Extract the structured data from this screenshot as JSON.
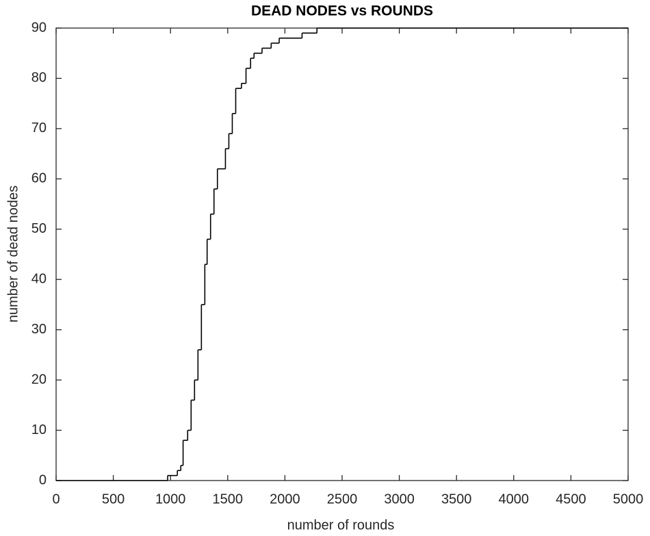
{
  "chart_data": {
    "type": "line",
    "step": "post",
    "title": "DEAD NODES vs ROUNDS",
    "x_label": "number of rounds",
    "y_label": "number of dead nodes",
    "color": "#000000",
    "x": [
      0,
      975,
      1060,
      1090,
      1110,
      1150,
      1180,
      1210,
      1240,
      1270,
      1300,
      1320,
      1350,
      1380,
      1410,
      1480,
      1510,
      1540,
      1570,
      1620,
      1660,
      1700,
      1730,
      1800,
      1880,
      1950,
      2150,
      2280,
      5000
    ],
    "values": [
      0,
      1,
      2,
      3,
      8,
      10,
      16,
      20,
      26,
      35,
      43,
      48,
      53,
      58,
      62,
      66,
      69,
      73,
      78,
      79,
      82,
      84,
      85,
      86,
      87,
      88,
      89,
      90,
      90
    ],
    "xlim": [
      0,
      5000
    ],
    "ylim": [
      0,
      90
    ],
    "xticks": [
      0,
      500,
      1000,
      1500,
      2000,
      2500,
      3000,
      3500,
      4000,
      4500,
      5000
    ],
    "yticks": [
      0,
      10,
      20,
      30,
      40,
      50,
      60,
      70,
      80,
      90
    ],
    "grid": false
  }
}
